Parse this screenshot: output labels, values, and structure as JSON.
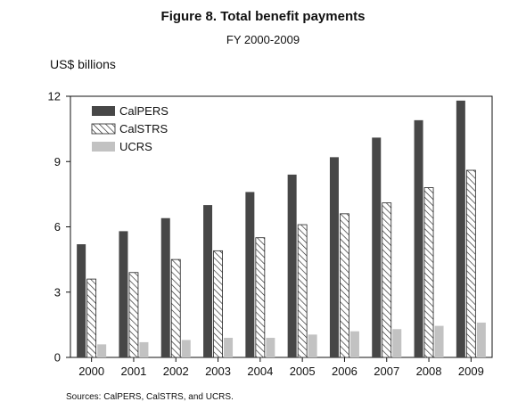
{
  "chart_data": {
    "type": "bar",
    "title": "Figure 8. Total benefit payments",
    "subtitle": "FY 2000-2009",
    "ylabel": "US$ billions",
    "xlabel": "",
    "categories": [
      "2000",
      "2001",
      "2002",
      "2003",
      "2004",
      "2005",
      "2006",
      "2007",
      "2008",
      "2009"
    ],
    "series": [
      {
        "name": "CalPERS",
        "values": [
          5.2,
          5.8,
          6.4,
          7.0,
          7.6,
          8.4,
          9.2,
          10.1,
          10.9,
          11.8
        ],
        "color": "#474747",
        "pattern": "solid"
      },
      {
        "name": "CalSTRS",
        "values": [
          3.6,
          3.9,
          4.5,
          4.9,
          5.5,
          6.1,
          6.6,
          7.1,
          7.8,
          8.6
        ],
        "color": "#ffffff",
        "pattern": "diagonal-hatch"
      },
      {
        "name": "UCRS",
        "values": [
          0.6,
          0.7,
          0.8,
          0.9,
          0.9,
          1.05,
          1.2,
          1.3,
          1.45,
          1.6
        ],
        "color": "#c2c2c2",
        "pattern": "solid"
      }
    ],
    "ylim": [
      0,
      12
    ],
    "yticks": [
      0,
      3,
      6,
      9,
      12
    ],
    "grid": false,
    "legend_position": "top-left",
    "source": "Sources: CalPERS, CalSTRS, and UCRS."
  }
}
